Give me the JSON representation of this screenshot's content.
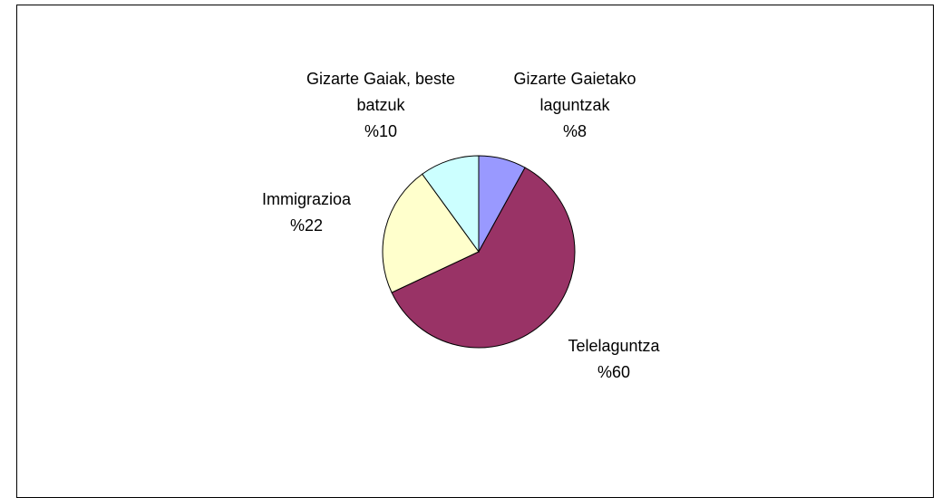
{
  "chart_data": {
    "type": "pie",
    "categories": [
      "Gizarte Gaietako laguntzak",
      "Telelaguntza",
      "Immigrazioa",
      "Gizarte Gaiak, beste batzuk"
    ],
    "values": [
      8,
      60,
      22,
      10
    ],
    "value_labels": [
      "%8",
      "%60",
      "%22",
      "%10"
    ],
    "colors": [
      "#9999ff",
      "#993366",
      "#ffffcc",
      "#ccffff"
    ]
  }
}
